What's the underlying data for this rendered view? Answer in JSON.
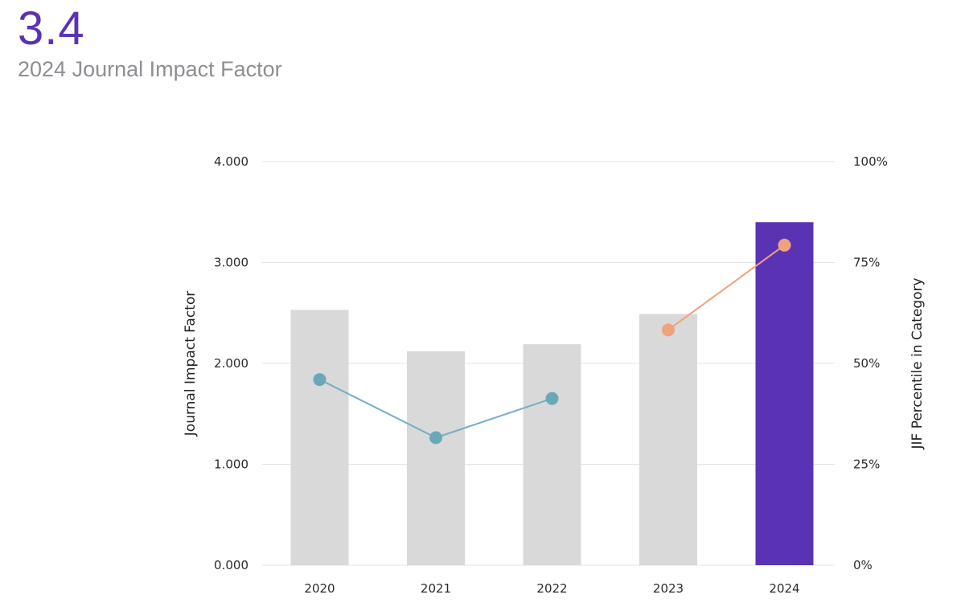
{
  "header": {
    "value": "3.4",
    "label": "2024 Journal Impact Factor"
  },
  "colors": {
    "accent": "#5a33b5",
    "bar_default": "#d9d9d9",
    "line_blue": "#74afc1",
    "dot_blue": "#6aa8b9",
    "line_orange": "#f0a17d",
    "dot_orange": "#f0a27c",
    "grid": "#e3e3e3"
  },
  "chart_data": {
    "type": "bar",
    "categories": [
      "2020",
      "2021",
      "2022",
      "2023",
      "2024"
    ],
    "series": [
      {
        "name": "Journal Impact Factor",
        "axis": "left",
        "values": [
          2.53,
          2.12,
          2.19,
          2.49,
          3.4
        ],
        "highlight_index": 4
      },
      {
        "name": "JIF Percentile in Category",
        "type": "line",
        "axis": "right",
        "segments": [
          {
            "categories": [
              "2020",
              "2021",
              "2022"
            ],
            "values": [
              46,
              31.6,
              41.3
            ],
            "color": "blue"
          },
          {
            "categories": [
              "2023",
              "2024"
            ],
            "values": [
              58.3,
              79.3
            ],
            "color": "orange"
          }
        ]
      }
    ],
    "ylabel": "Journal Impact Factor",
    "y2label": "JIF Percentile in Category",
    "ylim": [
      0,
      4
    ],
    "y2lim": [
      0,
      100
    ],
    "yticks": [
      "0.000",
      "1.000",
      "2.000",
      "3.000",
      "4.000"
    ],
    "y2ticks": [
      "0%",
      "25%",
      "50%",
      "75%",
      "100%"
    ],
    "grid": true
  }
}
